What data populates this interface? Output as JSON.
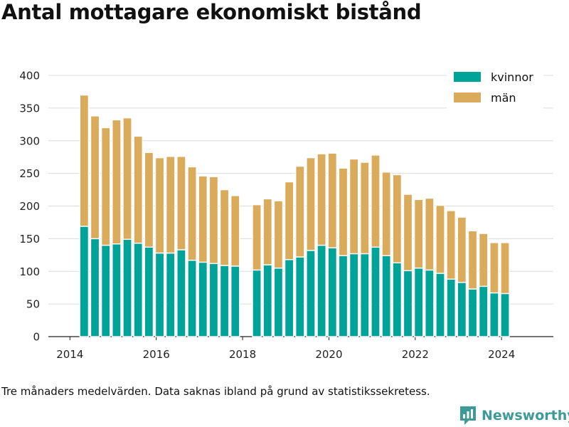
{
  "chart_data": {
    "type": "bar",
    "stacked": true,
    "title": "Antal mottagare ekonomiskt bistånd",
    "xlabel": "",
    "ylabel": "",
    "ylim": [
      0,
      400
    ],
    "xlim": [
      2013.5,
      2025.2
    ],
    "yticks": [
      "0",
      "50",
      "100",
      "150",
      "200",
      "250",
      "300",
      "350",
      "400"
    ],
    "xticks": [
      "2014",
      "2016",
      "2018",
      "2020",
      "2022",
      "2024"
    ],
    "grid": true,
    "legend_position": "top-right",
    "x": [
      2014.33,
      2014.58,
      2014.83,
      2015.08,
      2015.33,
      2015.58,
      2015.83,
      2016.08,
      2016.33,
      2016.58,
      2016.83,
      2017.08,
      2017.33,
      2017.58,
      2017.83,
      2018.33,
      2018.58,
      2018.83,
      2019.08,
      2019.33,
      2019.58,
      2019.83,
      2020.08,
      2020.33,
      2020.58,
      2020.83,
      2021.08,
      2021.33,
      2021.58,
      2021.83,
      2022.08,
      2022.33,
      2022.58,
      2022.83,
      2023.08,
      2023.33,
      2023.58,
      2023.83,
      2024.08
    ],
    "series": [
      {
        "name": "kvinnor",
        "color": "#00a398",
        "values": [
          169,
          150,
          140,
          142,
          149,
          143,
          137,
          128,
          128,
          133,
          117,
          114,
          112,
          109,
          108,
          102,
          110,
          105,
          118,
          122,
          132,
          140,
          136,
          124,
          127,
          127,
          137,
          124,
          113,
          101,
          105,
          102,
          97,
          88,
          83,
          73,
          77,
          67,
          66
        ]
      },
      {
        "name": "män",
        "color": "#dbab5c",
        "values": [
          201,
          188,
          180,
          190,
          186,
          164,
          145,
          146,
          148,
          143,
          143,
          132,
          133,
          116,
          108,
          100,
          101,
          103,
          119,
          139,
          142,
          140,
          145,
          134,
          145,
          140,
          141,
          128,
          135,
          117,
          105,
          110,
          104,
          105,
          100,
          89,
          81,
          77,
          78
        ]
      }
    ]
  },
  "footnote": "Tre månaders medelvärden. Data saknas ibland på grund av statistikssekretess.",
  "brand": {
    "name": "Newsworthy",
    "color": "#3e9a97",
    "icon": "newsworthy-logo-icon"
  }
}
